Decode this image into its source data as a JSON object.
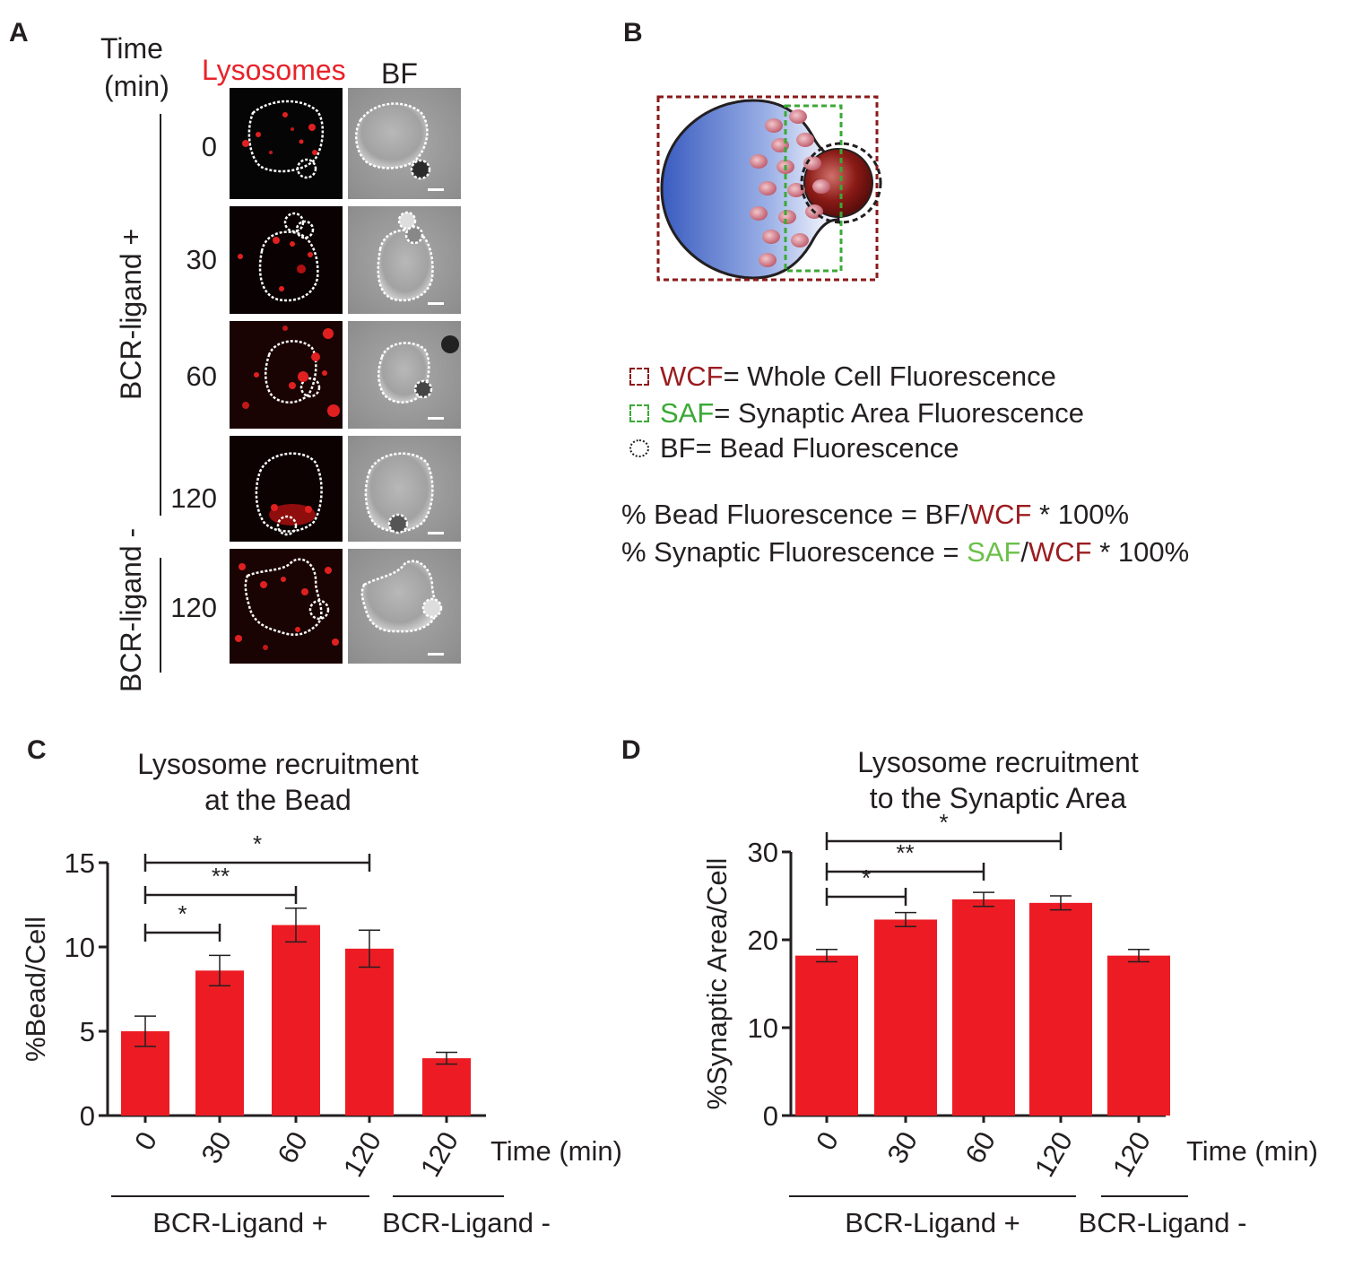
{
  "panel_a": {
    "label": "A",
    "time_header": [
      "Time",
      "(min)"
    ],
    "lysosomes_header": "Lysosomes",
    "bf_header": "BF",
    "time_labels": [
      "0",
      "30",
      "60",
      "120",
      "120"
    ],
    "group_plus": "BCR-ligand +",
    "group_minus": "BCR-ligand -",
    "colors": {
      "lysosome_red": "#e02020",
      "header_red": "#e8232a"
    }
  },
  "panel_b": {
    "label": "B",
    "legend": [
      {
        "abbr": "WCF",
        "text": "= Whole Cell Fluorescence",
        "color": "#9b1c1f"
      },
      {
        "abbr": "SAF",
        "text": "= Synaptic Area Fluorescence",
        "color": "#3aa935"
      },
      {
        "abbr": "BF",
        "text": "= Bead Fluorescence",
        "color": "#231f20"
      }
    ],
    "formula1": {
      "prefix": "% Bead Fluorescence = BF/",
      "red": "WCF",
      "suffix": " * 100%"
    },
    "formula2": {
      "prefix": "% Synaptic Fluorescence = ",
      "green": "SAF",
      "slash": "/",
      "red": "WCF",
      "suffix": " * 100%"
    }
  },
  "panel_c": {
    "label": "C",
    "title_line1": "Lysosome recruitment",
    "title_line2": "at the Bead"
  },
  "panel_d": {
    "label": "D",
    "title_line1": "Lysosome recruitment",
    "title_line2": "to the Synaptic Area"
  },
  "chart_data": [
    {
      "type": "bar",
      "title": "Lysosome recruitment at the Bead",
      "ylabel": "%Bead/Cell",
      "xlabel": "Time (min)",
      "ylim": [
        0,
        15
      ],
      "yticks": [
        "0",
        "5",
        "10",
        "15"
      ],
      "categories": [
        "0",
        "30",
        "60",
        "120",
        "120"
      ],
      "values": [
        5.0,
        8.6,
        11.3,
        9.9,
        3.4
      ],
      "errors": [
        0.9,
        0.9,
        1.0,
        1.1,
        0.35
      ],
      "groups": [
        "BCR-Ligand +",
        "BCR-Ligand -"
      ],
      "significance": [
        {
          "from": 0,
          "to": 1,
          "label": "*"
        },
        {
          "from": 0,
          "to": 2,
          "label": "**"
        },
        {
          "from": 0,
          "to": 3,
          "label": "*"
        }
      ],
      "bar_color": "#ed1c24"
    },
    {
      "type": "bar",
      "title": "Lysosome recruitment to the Synaptic Area",
      "ylabel": "%Synaptic Area/Cell",
      "xlabel": "Time (min)",
      "ylim": [
        0,
        30
      ],
      "yticks": [
        "0",
        "10",
        "20",
        "30"
      ],
      "categories": [
        "0",
        "30",
        "60",
        "120",
        "120"
      ],
      "values": [
        18.2,
        22.3,
        24.6,
        24.2,
        18.2
      ],
      "errors": [
        0.7,
        0.8,
        0.8,
        0.8,
        0.7
      ],
      "groups": [
        "BCR-Ligand +",
        "BCR-Ligand -"
      ],
      "significance": [
        {
          "from": 0,
          "to": 1,
          "label": "*"
        },
        {
          "from": 0,
          "to": 2,
          "label": "**"
        },
        {
          "from": 0,
          "to": 3,
          "label": "*"
        }
      ],
      "bar_color": "#ed1c24"
    }
  ]
}
